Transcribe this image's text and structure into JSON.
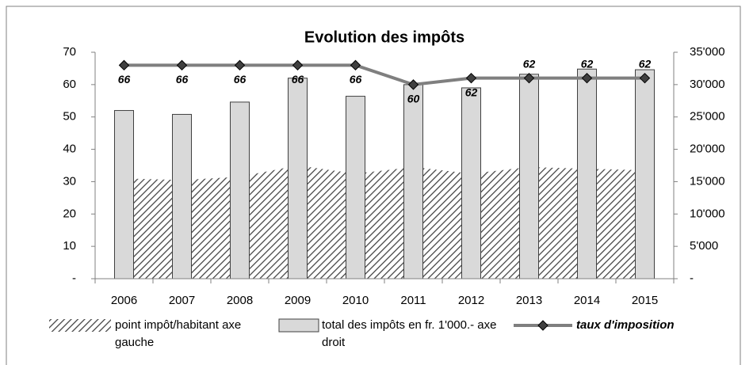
{
  "chart_data": {
    "type": "combo",
    "title": "Evolution des impôts",
    "categories": [
      "2006",
      "2007",
      "2008",
      "2009",
      "2010",
      "2011",
      "2012",
      "2013",
      "2014",
      "2015"
    ],
    "ylim": [
      0,
      70
    ],
    "yticks": [
      {
        "value": 0,
        "label": "-"
      },
      10,
      20,
      30,
      40,
      50,
      60,
      70
    ],
    "y2lim": [
      0,
      35000
    ],
    "y2ticks": [
      {
        "value": 0,
        "label": "-"
      },
      {
        "value": 5000,
        "label": "5'000"
      },
      {
        "value": 10000,
        "label": "10'000"
      },
      {
        "value": 15000,
        "label": "15'000"
      },
      {
        "value": 20000,
        "label": "20'000"
      },
      {
        "value": 25000,
        "label": "25'000"
      },
      {
        "value": 30000,
        "label": "30'000"
      },
      {
        "value": 35000,
        "label": "35'000"
      }
    ],
    "series": [
      {
        "name": "point impôt/habitant axe gauche",
        "type": "area",
        "color": "#404040",
        "values": [
          31,
          30.5,
          31.5,
          35,
          32.5,
          34.5,
          32.5,
          34.5,
          34,
          33.5
        ]
      },
      {
        "name": "total des impôts en fr. 1'000.- axe droit",
        "type": "bar",
        "axis": "y2",
        "color": "#d9d9d9",
        "values": [
          26000,
          25400,
          27300,
          31000,
          28200,
          30000,
          29500,
          31600,
          32400,
          32300
        ]
      },
      {
        "name": "taux d'imposition",
        "type": "line",
        "color": "#7f7f7f",
        "marker_color": "#404040",
        "values": [
          66,
          66,
          66,
          66,
          66,
          60,
          62,
          62,
          62,
          62
        ]
      }
    ]
  }
}
